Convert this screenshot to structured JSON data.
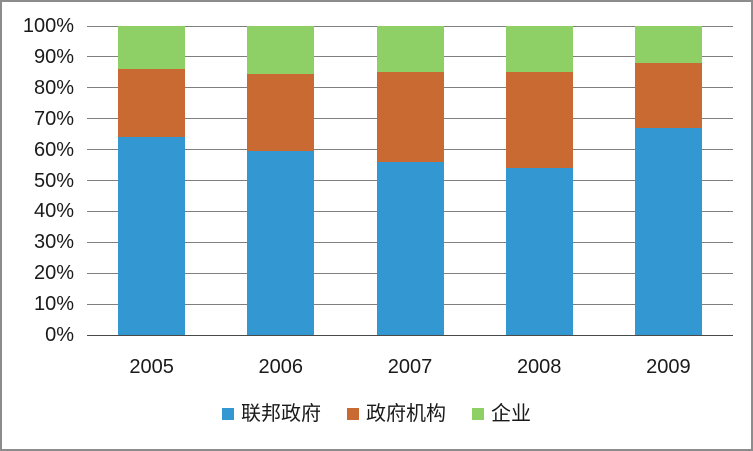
{
  "chart_data": {
    "type": "bar",
    "stacked": true,
    "percent": true,
    "title": "",
    "xlabel": "",
    "ylabel": "",
    "categories": [
      "2005",
      "2006",
      "2007",
      "2008",
      "2009"
    ],
    "series": [
      {
        "name": "联邦政府",
        "color": "#3398D1",
        "values": [
          64,
          59.5,
          56,
          54,
          67
        ]
      },
      {
        "name": "政府机构",
        "color": "#C96A32",
        "values": [
          22,
          25,
          29,
          31,
          21
        ]
      },
      {
        "name": "企业",
        "color": "#8FD066",
        "values": [
          14,
          15.5,
          15,
          15,
          12
        ]
      }
    ],
    "ylim": [
      0,
      100
    ],
    "y_ticks": [
      "0%",
      "10%",
      "20%",
      "30%",
      "40%",
      "50%",
      "60%",
      "70%",
      "80%",
      "90%",
      "100%"
    ],
    "grid": true,
    "legend_position": "bottom",
    "gridline_color": "#7f7f7f",
    "axis_text_color": "#1a1a1a"
  }
}
